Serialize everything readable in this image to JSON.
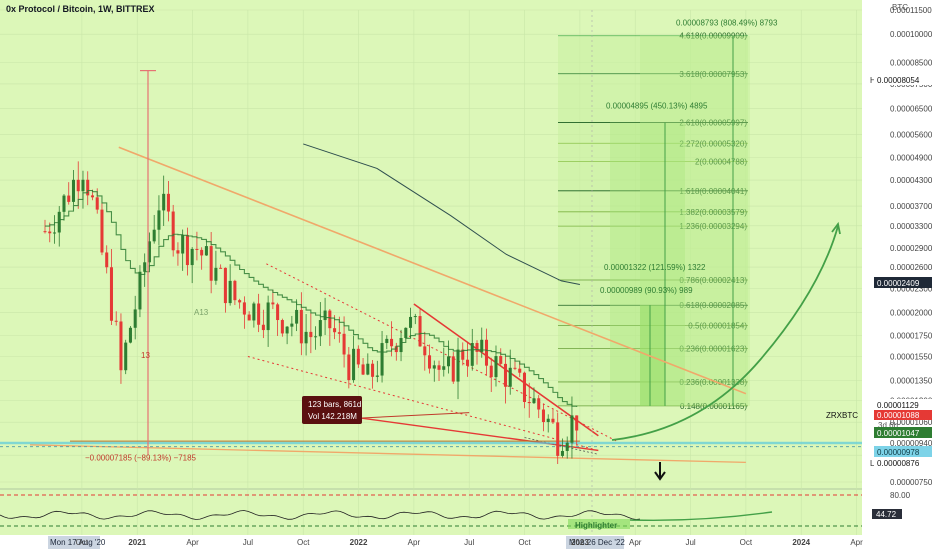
{
  "header": {
    "title": "0x Protocol / Bitcoin, 1W, BITTREX"
  },
  "axis": {
    "currency": "BTC",
    "price_ticks": [
      "0.00011500",
      "0.00010000",
      "0.00008500",
      "0.00007500",
      "0.00006500",
      "0.00005600",
      "0.00004900",
      "0.00004300",
      "0.00003700",
      "0.00003300",
      "0.00002900",
      "0.00002600",
      "0.00002300",
      "0.00002000",
      "0.00001750",
      "0.00001550",
      "0.00001350",
      "0.00001200",
      "0.00001060",
      "0.00000940",
      "0.00000876",
      "0.00000750"
    ],
    "time_ticks": [
      "Oct",
      "2021",
      "Apr",
      "Jul",
      "Oct",
      "2022",
      "Apr",
      "Jul",
      "Oct",
      "2023",
      "Apr",
      "Jul",
      "Oct",
      "2024",
      "Apr"
    ],
    "osc_ticks": [
      "80.00",
      "44.72"
    ]
  },
  "price_badges": {
    "high_label": "High",
    "high_value": "0.00008054",
    "current_value": "0.00002409",
    "symbol": "ZRXBTC",
    "price": "0.00001088",
    "interval": "3d 6h",
    "ma_value": "0.00001129",
    "cursor_value": "0.00001047",
    "low_value_a": "0.00000978",
    "low_label": "Low",
    "low_value": "0.00000876"
  },
  "fib_levels": [
    {
      "label": "4.618(0.00009909)",
      "color": "#4caf50"
    },
    {
      "label": "3.618(0.00007953)",
      "color": "#2e7d32"
    },
    {
      "label": "2.618(0.00005997)",
      "color": "#1b5e20"
    },
    {
      "label": "2.272(0.00005320)",
      "color": "#8bc34a"
    },
    {
      "label": "2(0.00004788)",
      "color": "#8bc34a"
    },
    {
      "label": "1.618(0.00004041)",
      "color": "#1b5e20"
    },
    {
      "label": "1.382(0.00003579)",
      "color": "#7cb342"
    },
    {
      "label": "1.236(0.00003294)",
      "color": "#7cb342"
    },
    {
      "label": "0.786(0.00002413)",
      "color": "#689f38"
    },
    {
      "label": "0.618(0.00002085)",
      "color": "#1b5e20"
    },
    {
      "label": "0.5(0.00001854)",
      "color": "#689f38"
    },
    {
      "label": "0.236(0.00001623)",
      "color": "#689f38"
    },
    {
      "label": "0.236(0.00001338)",
      "color": "#689f38"
    },
    {
      "label": "0.148(0.00001165)",
      "color": "#689f38"
    }
  ],
  "targets": [
    {
      "text": "0.00008793 (808.49%) 8793"
    },
    {
      "text": "0.00004895 (450.13%) 4895"
    },
    {
      "text": "0.00001322 (121.59%) 1322"
    },
    {
      "text": "0.00000989 (90.93%) 989"
    }
  ],
  "annotations": {
    "drop_measure": "−0.00007185 (−89.13%) −7185",
    "bars_box_line1": "123 bars, 861d",
    "bars_box_line2": "Vol 142.218M",
    "marker_a13": "A13",
    "marker_13": "13",
    "cursor_date_left": "Mon 17 Aug '20",
    "cursor_date_right": "Mon 26 Dec '22",
    "watermark": "Highlighter"
  },
  "colors": {
    "background": "#dcf7b8",
    "up_candle": "#2e7d32",
    "down_candle": "#e53935",
    "fib_green": "#2e7d32",
    "trend_orange": "#f4a460",
    "trend_red": "#e53935",
    "arrow_green": "#43a047"
  },
  "chart_data": {
    "type": "line",
    "title": "0x Protocol / Bitcoin, 1W, BITTREX",
    "xlabel": "",
    "ylabel": "BTC",
    "y_scale": "log",
    "ylim": [
      7.5e-06,
      0.000115
    ],
    "x_range": [
      "2020-08",
      "2024-04"
    ],
    "series": [
      {
        "values": [
          [
            "2020-08",
            3.2e-05
          ],
          [
            "2020-09",
            3.8e-05
          ],
          [
            "2020-10",
            4.7e-05
          ],
          [
            "2020-11",
            2.8e-05
          ],
          [
            "2020-12",
            1.4e-05
          ],
          [
            "2021-01",
            2.3e-05
          ],
          [
            "2021-02",
            3.8e-05
          ],
          [
            "2021-03",
            3e-05
          ],
          [
            "2021-04",
            2.9e-05
          ],
          [
            "2021-05",
            2.5e-05
          ],
          [
            "2021-06",
            2.15e-05
          ],
          [
            "2021-07",
            2.05e-05
          ],
          [
            "2021-08",
            2e-05
          ],
          [
            "2021-09",
            1.9e-05
          ],
          [
            "2021-10",
            1.75e-05
          ],
          [
            "2021-11",
            1.85e-05
          ],
          [
            "2021-12",
            1.5e-05
          ],
          [
            "2022-01",
            1.35e-05
          ],
          [
            "2022-02",
            1.6e-05
          ],
          [
            "2022-03",
            1.9e-05
          ],
          [
            "2022-04",
            1.7e-05
          ],
          [
            "2022-05",
            1.35e-05
          ],
          [
            "2022-06",
            1.6e-05
          ],
          [
            "2022-07",
            1.55e-05
          ],
          [
            "2022-08",
            1.45e-05
          ],
          [
            "2022-09",
            1.3e-05
          ],
          [
            "2022-10",
            1.15e-05
          ],
          [
            "2022-11",
            9.8e-06
          ],
          [
            "2022-12",
            1.09e-05
          ]
        ]
      }
    ],
    "legend": "none",
    "grid": true
  }
}
